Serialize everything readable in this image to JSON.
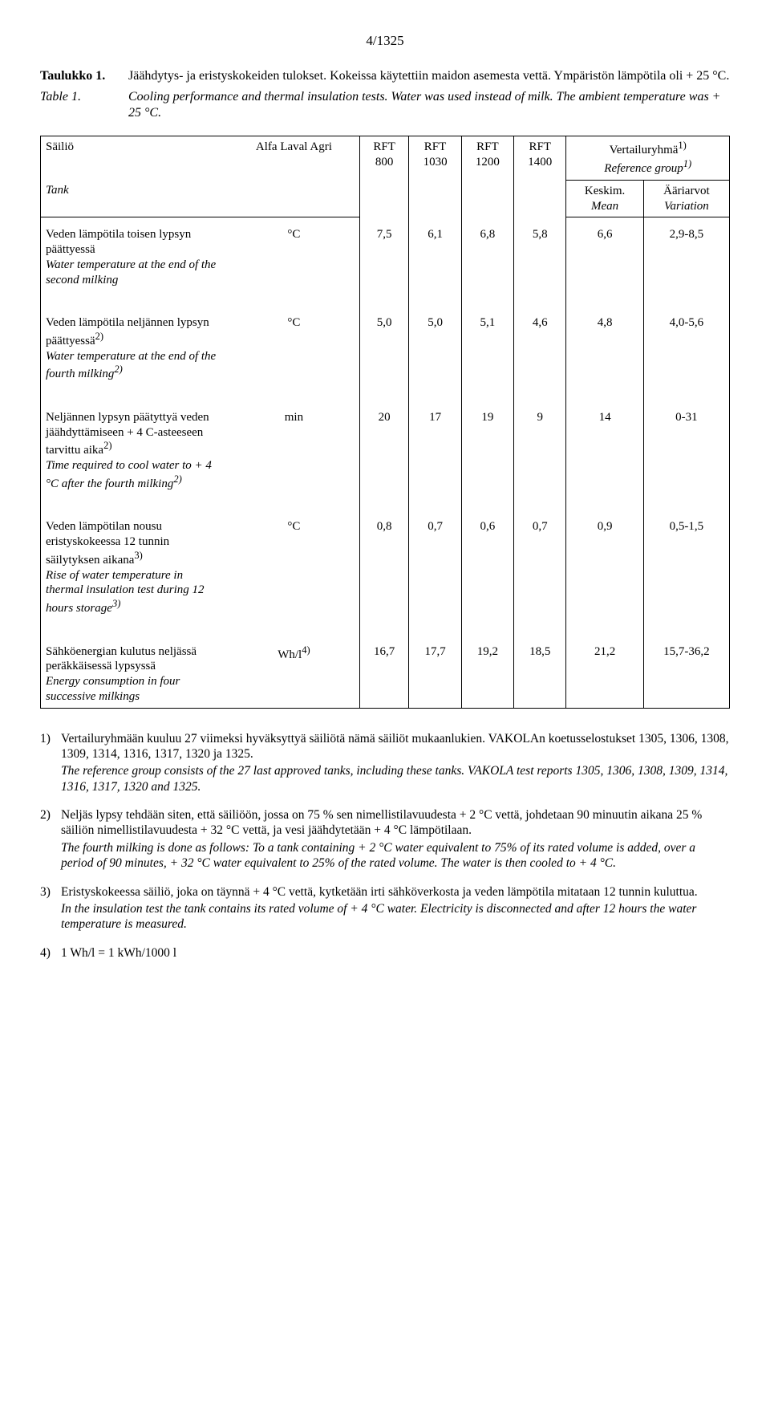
{
  "page_number": "4/1325",
  "caption_fi_label": "Taulukko 1.",
  "caption_fi_text": "Jäähdytys- ja eristyskokeiden tulokset. Kokeissa käytettiin maidon asemesta vettä. Ympäristön lämpötila oli + 25 °C.",
  "caption_en_label": "Table 1.",
  "caption_en_text": "Cooling performance and thermal insulation tests. Water was used instead of milk. The ambient temperature was + 25 °C.",
  "table": {
    "header": {
      "tank_fi": "Säiliö",
      "tank_en": "Tank",
      "brand": "Alfa Laval Agri",
      "cols": [
        "RFT 800",
        "RFT 1030",
        "RFT 1200",
        "RFT 1400"
      ],
      "ref_fi": "Vertailuryhmä",
      "ref_sup": "1)",
      "ref_en": "Reference group",
      "ref_en_sup": "1)",
      "mean_fi": "Keskim.",
      "mean_en": "Mean",
      "var_fi": "Ääriarvot",
      "var_en": "Variation"
    },
    "rows": [
      {
        "label_fi": "Veden lämpötila toisen lypsyn päättyessä",
        "label_en": "Water temperature at the end of the second milking",
        "unit": "°C",
        "v": [
          "7,5",
          "6,1",
          "6,8",
          "5,8",
          "6,6",
          "2,9-8,5"
        ]
      },
      {
        "label_fi": "Veden lämpötila neljännen lypsyn päättyessä",
        "label_fi_sup": "2)",
        "label_en": "Water temperature at the end of the fourth milking",
        "label_en_sup": "2)",
        "unit": "°C",
        "v": [
          "5,0",
          "5,0",
          "5,1",
          "4,6",
          "4,8",
          "4,0-5,6"
        ]
      },
      {
        "label_fi": "Neljännen lypsyn päätyttyä veden jäähdyttämiseen + 4 C-asteeseen tarvittu aika",
        "label_fi_sup": "2)",
        "label_en": "Time required to cool water to + 4 °C after the fourth milking",
        "label_en_sup": "2)",
        "unit": "min",
        "v": [
          "20",
          "17",
          "19",
          "9",
          "14",
          "0-31"
        ]
      },
      {
        "label_fi": "Veden lämpötilan nousu eristyskokeessa 12 tunnin säilytyksen aikana",
        "label_fi_sup": "3)",
        "label_en": "Rise of water temperature in thermal insulation test during 12 hours storage",
        "label_en_sup": "3)",
        "unit": "°C",
        "v": [
          "0,8",
          "0,7",
          "0,6",
          "0,7",
          "0,9",
          "0,5-1,5"
        ]
      },
      {
        "label_fi": "Sähköenergian kulutus neljässä peräkkäisessä lypsyssä",
        "label_en": "Energy consumption in four successive milkings",
        "unit": "Wh/l",
        "unit_sup": "4)",
        "v": [
          "16,7",
          "17,7",
          "19,2",
          "18,5",
          "21,2",
          "15,7-36,2"
        ]
      }
    ]
  },
  "footnotes": [
    {
      "num": "1)",
      "fi": "Vertailuryhmään kuuluu 27 viimeksi hyväksyttyä säiliötä nämä säiliöt mukaanlukien. VAKOLAn koetusselostukset 1305, 1306, 1308, 1309, 1314, 1316, 1317, 1320 ja 1325.",
      "en": "The reference group consists of the 27 last approved tanks, including these tanks. VAKOLA test reports 1305, 1306, 1308, 1309, 1314, 1316, 1317, 1320 and 1325."
    },
    {
      "num": "2)",
      "fi": "Neljäs lypsy tehdään siten, että säiliöön, jossa on 75 % sen nimellistilavuudesta + 2 °C vettä, johdetaan 90 minuutin aikana 25 % säiliön nimellistilavuudesta + 32 °C vettä, ja vesi jäähdytetään + 4 °C lämpötilaan.",
      "en": "The fourth milking is done as follows: To a tank containing + 2 °C water equivalent to 75% of its rated volume is added, over a period of 90 minutes, + 32 °C water equivalent to 25% of the rated volume. The water is then cooled to + 4 °C."
    },
    {
      "num": "3)",
      "fi": "Eristyskokeessa säiliö, joka on täynnä + 4 °C vettä, kytketään irti sähköverkosta ja veden lämpötila mitataan 12 tunnin kuluttua.",
      "en": "In the insulation test the tank contains its rated volume of + 4 °C water. Electricity is disconnected and after 12 hours the water temperature is measured."
    },
    {
      "num": "4)",
      "fi": "1 Wh/l = 1 kWh/1000 l",
      "en": ""
    }
  ]
}
